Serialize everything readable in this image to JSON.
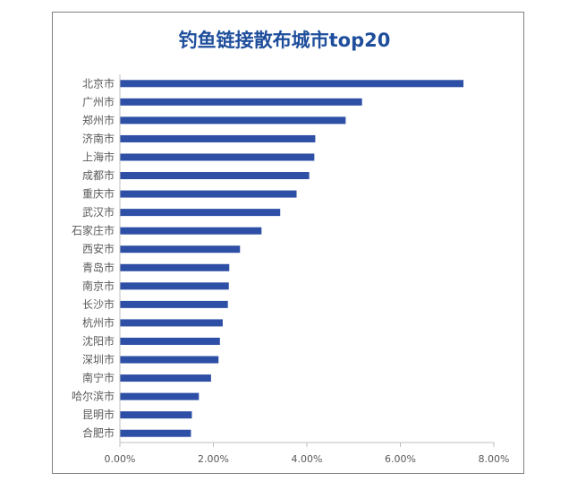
{
  "chart_data": {
    "type": "bar",
    "orientation": "horizontal",
    "title": "钓鱼链接散布城市top20",
    "categories": [
      "北京市",
      "广州市",
      "郑州市",
      "济南市",
      "上海市",
      "成都市",
      "重庆市",
      "武汉市",
      "石家庄市",
      "西安市",
      "青岛市",
      "南京市",
      "长沙市",
      "杭州市",
      "沈阳市",
      "深圳市",
      "南宁市",
      "哈尔滨市",
      "昆明市",
      "合肥市"
    ],
    "values": [
      7.35,
      5.18,
      4.83,
      4.18,
      4.16,
      4.05,
      3.78,
      3.43,
      3.03,
      2.57,
      2.34,
      2.33,
      2.31,
      2.2,
      2.14,
      2.11,
      1.95,
      1.69,
      1.54,
      1.52
    ],
    "xlim": [
      0,
      8
    ],
    "xticks": [
      "0.00%",
      "2.00%",
      "4.00%",
      "6.00%",
      "8.00%"
    ],
    "grid": false,
    "legend": "none",
    "bar_color": "#2e4fa6"
  }
}
